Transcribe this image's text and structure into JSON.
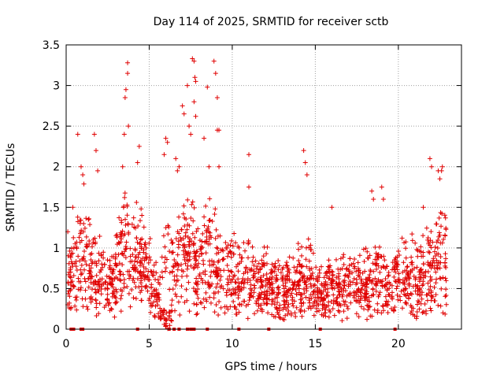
{
  "chart_data": {
    "type": "scatter",
    "title": "Day 114 of 2025, SRMTID for receiver sctb",
    "xlabel": "GPS time / hours",
    "ylabel": "SRMTID / TECUs",
    "xlim": [
      0,
      23.8
    ],
    "ylim": [
      0,
      3.5
    ],
    "xticks": [
      0,
      5,
      10,
      15,
      20
    ],
    "yticks": [
      0,
      0.5,
      1,
      1.5,
      2,
      2.5,
      3,
      3.5
    ],
    "xtick_labels": [
      "0",
      "5",
      "10",
      "15",
      "20"
    ],
    "ytick_labels": [
      "0",
      "0.5",
      "1",
      "1.5",
      "2",
      "2.5",
      "3",
      "3.5"
    ],
    "grid": true,
    "marker": "+",
    "series_color": "#e00000",
    "envelope": [
      [
        0.0,
        1.3
      ],
      [
        0.5,
        1.4
      ],
      [
        1.0,
        2.0
      ],
      [
        1.5,
        1.6
      ],
      [
        2.0,
        1.3
      ],
      [
        2.5,
        1.2
      ],
      [
        3.0,
        1.4
      ],
      [
        3.5,
        2.1
      ],
      [
        4.0,
        1.7
      ],
      [
        4.5,
        1.9
      ],
      [
        5.0,
        1.4
      ],
      [
        5.5,
        0.9
      ],
      [
        6.0,
        1.9
      ],
      [
        6.5,
        1.5
      ],
      [
        7.0,
        1.8
      ],
      [
        7.5,
        2.2
      ],
      [
        8.0,
        1.4
      ],
      [
        8.5,
        1.9
      ],
      [
        9.0,
        1.6
      ],
      [
        9.5,
        1.3
      ],
      [
        10.0,
        1.5
      ],
      [
        10.5,
        1.1
      ],
      [
        11.0,
        1.3
      ],
      [
        11.5,
        1.1
      ],
      [
        12.0,
        1.2
      ],
      [
        12.5,
        1.0
      ],
      [
        13.0,
        1.0
      ],
      [
        13.5,
        1.0
      ],
      [
        14.0,
        1.2
      ],
      [
        14.5,
        1.4
      ],
      [
        15.0,
        1.0
      ],
      [
        15.5,
        0.8
      ],
      [
        16.0,
        1.1
      ],
      [
        16.5,
        1.0
      ],
      [
        17.0,
        1.1
      ],
      [
        17.5,
        1.1
      ],
      [
        18.0,
        1.2
      ],
      [
        18.5,
        1.3
      ],
      [
        19.0,
        1.2
      ],
      [
        19.5,
        1.1
      ],
      [
        20.0,
        1.2
      ],
      [
        20.5,
        1.3
      ],
      [
        21.0,
        1.3
      ],
      [
        21.5,
        1.4
      ],
      [
        22.0,
        1.5
      ],
      [
        22.5,
        1.8
      ],
      [
        22.9,
        1.6
      ]
    ],
    "spikes": [
      [
        0.1,
        1.2
      ],
      [
        0.4,
        1.5
      ],
      [
        0.7,
        2.4
      ],
      [
        0.9,
        2.0
      ],
      [
        1.0,
        1.9
      ],
      [
        1.7,
        2.4
      ],
      [
        1.8,
        2.2
      ],
      [
        1.9,
        1.95
      ],
      [
        3.4,
        2.0
      ],
      [
        3.5,
        2.4
      ],
      [
        3.55,
        2.85
      ],
      [
        3.6,
        2.95
      ],
      [
        3.7,
        3.28
      ],
      [
        3.7,
        3.15
      ],
      [
        3.75,
        2.5
      ],
      [
        4.3,
        2.05
      ],
      [
        4.4,
        2.25
      ],
      [
        5.9,
        2.15
      ],
      [
        6.0,
        2.35
      ],
      [
        6.1,
        2.3
      ],
      [
        6.6,
        2.1
      ],
      [
        6.7,
        1.95
      ],
      [
        6.8,
        2.0
      ],
      [
        7.0,
        2.75
      ],
      [
        7.1,
        2.65
      ],
      [
        7.3,
        3.0
      ],
      [
        7.4,
        2.5
      ],
      [
        7.5,
        2.4
      ],
      [
        7.6,
        3.33
      ],
      [
        7.7,
        3.3
      ],
      [
        7.75,
        3.1
      ],
      [
        7.8,
        3.05
      ],
      [
        7.7,
        2.8
      ],
      [
        7.8,
        2.62
      ],
      [
        8.3,
        2.35
      ],
      [
        8.5,
        2.98
      ],
      [
        8.6,
        2.0
      ],
      [
        8.9,
        3.3
      ],
      [
        9.0,
        3.15
      ],
      [
        9.1,
        2.85
      ],
      [
        9.1,
        2.45
      ],
      [
        9.2,
        2.45
      ],
      [
        9.2,
        2.0
      ],
      [
        11.0,
        2.15
      ],
      [
        11.0,
        1.75
      ],
      [
        14.3,
        2.2
      ],
      [
        14.4,
        2.05
      ],
      [
        14.5,
        1.9
      ],
      [
        16.0,
        1.5
      ],
      [
        18.4,
        1.7
      ],
      [
        18.5,
        1.6
      ],
      [
        19.0,
        1.75
      ],
      [
        19.1,
        1.6
      ],
      [
        21.5,
        1.5
      ],
      [
        21.9,
        2.1
      ],
      [
        22.0,
        2.0
      ],
      [
        22.4,
        1.95
      ],
      [
        22.5,
        1.85
      ],
      [
        22.6,
        1.95
      ],
      [
        22.65,
        2.0
      ]
    ],
    "zero_markers": [
      0.3,
      0.45,
      0.9,
      1.0,
      4.3,
      6.2,
      6.5,
      6.8,
      7.3,
      7.5,
      7.6,
      7.7,
      8.5,
      10.4,
      12.2,
      15.3,
      19.8
    ]
  }
}
